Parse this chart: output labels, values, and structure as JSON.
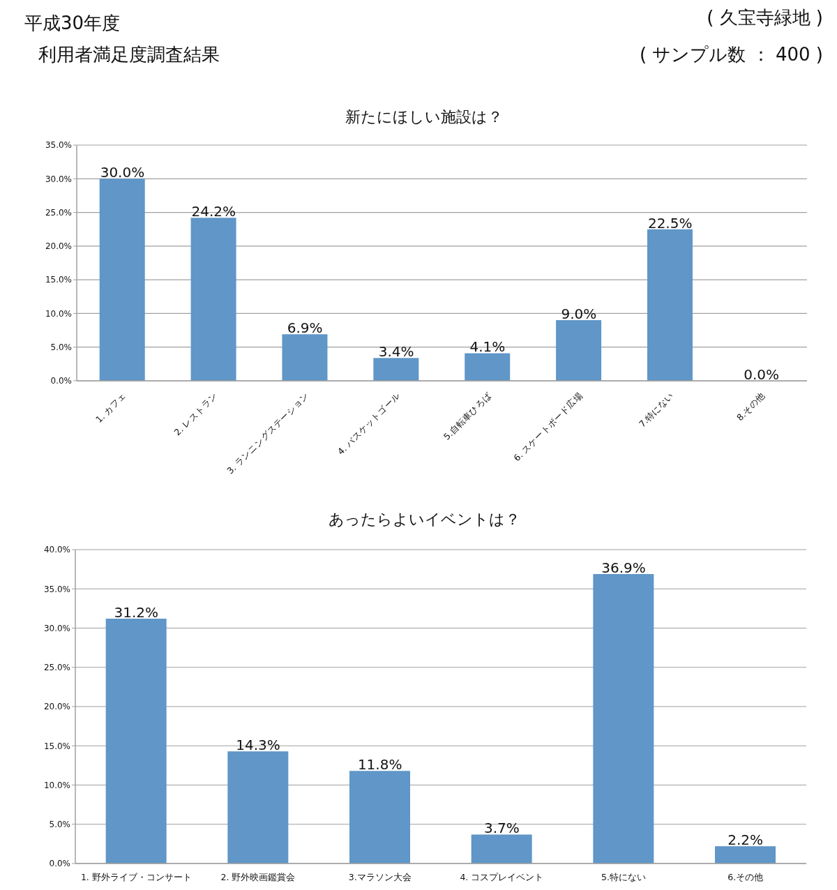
{
  "chart_data": [
    {
      "type": "bar",
      "title": "新たにほしい施設は？",
      "annotations": [
        "平成30年度",
        "利用者満足度調査結果",
        "( 久宝寺緑地 )",
        "( サンプル数 ： 400 )"
      ],
      "categories": [
        "1. カフェ",
        "2. レストラン",
        "3. ランニングステーション",
        "4. バスケットゴール",
        "5.自転車ひろば",
        "6. スケートボード広場",
        "7.特にない",
        "8.その他"
      ],
      "values": [
        30.0,
        24.2,
        6.9,
        3.4,
        4.1,
        9.0,
        22.5,
        0.0
      ],
      "value_labels": [
        "30.0%",
        "24.2%",
        "6.9%",
        "3.4%",
        "4.1%",
        "9.0%",
        "22.5%",
        "0.0%"
      ],
      "color": "#6096c8",
      "ylim": [
        0,
        35
      ],
      "yticks": [
        {
          "value": 0,
          "label": "0.0%"
        },
        {
          "value": 5,
          "label": "5.0%"
        },
        {
          "value": 10,
          "label": "10.0%"
        },
        {
          "value": 15,
          "label": "15.0%"
        },
        {
          "value": 20,
          "label": "20.0%"
        },
        {
          "value": 25,
          "label": "25.0%"
        },
        {
          "value": 30,
          "label": "30.0%"
        },
        {
          "value": 35,
          "label": "35.0%"
        }
      ],
      "grid": "y"
    },
    {
      "type": "bar",
      "title": "あったらよいイベントは？",
      "categories": [
        "1. 野外ライブ・コンサート",
        "2. 野外映画鑑賞会",
        "3.マラソン大会",
        "4. コスプレイベント",
        "5.特にない",
        "6.その他"
      ],
      "values": [
        31.2,
        14.3,
        11.8,
        3.7,
        36.9,
        2.2
      ],
      "value_labels": [
        "31.2%",
        "14.3%",
        "11.8%",
        "3.7%",
        "36.9%",
        "2.2%"
      ],
      "color": "#6096c8",
      "ylim": [
        0,
        40
      ],
      "yticks": [
        {
          "value": 0,
          "label": "0.0%"
        },
        {
          "value": 5,
          "label": "5.0%"
        },
        {
          "value": 10,
          "label": "10.0%"
        },
        {
          "value": 15,
          "label": "15.0%"
        },
        {
          "value": 20,
          "label": "20.0%"
        },
        {
          "value": 25,
          "label": "25.0%"
        },
        {
          "value": 30,
          "label": "30.0%"
        },
        {
          "value": 35,
          "label": "35.0%"
        },
        {
          "value": 40,
          "label": "40.0%"
        }
      ],
      "grid": "y"
    }
  ]
}
